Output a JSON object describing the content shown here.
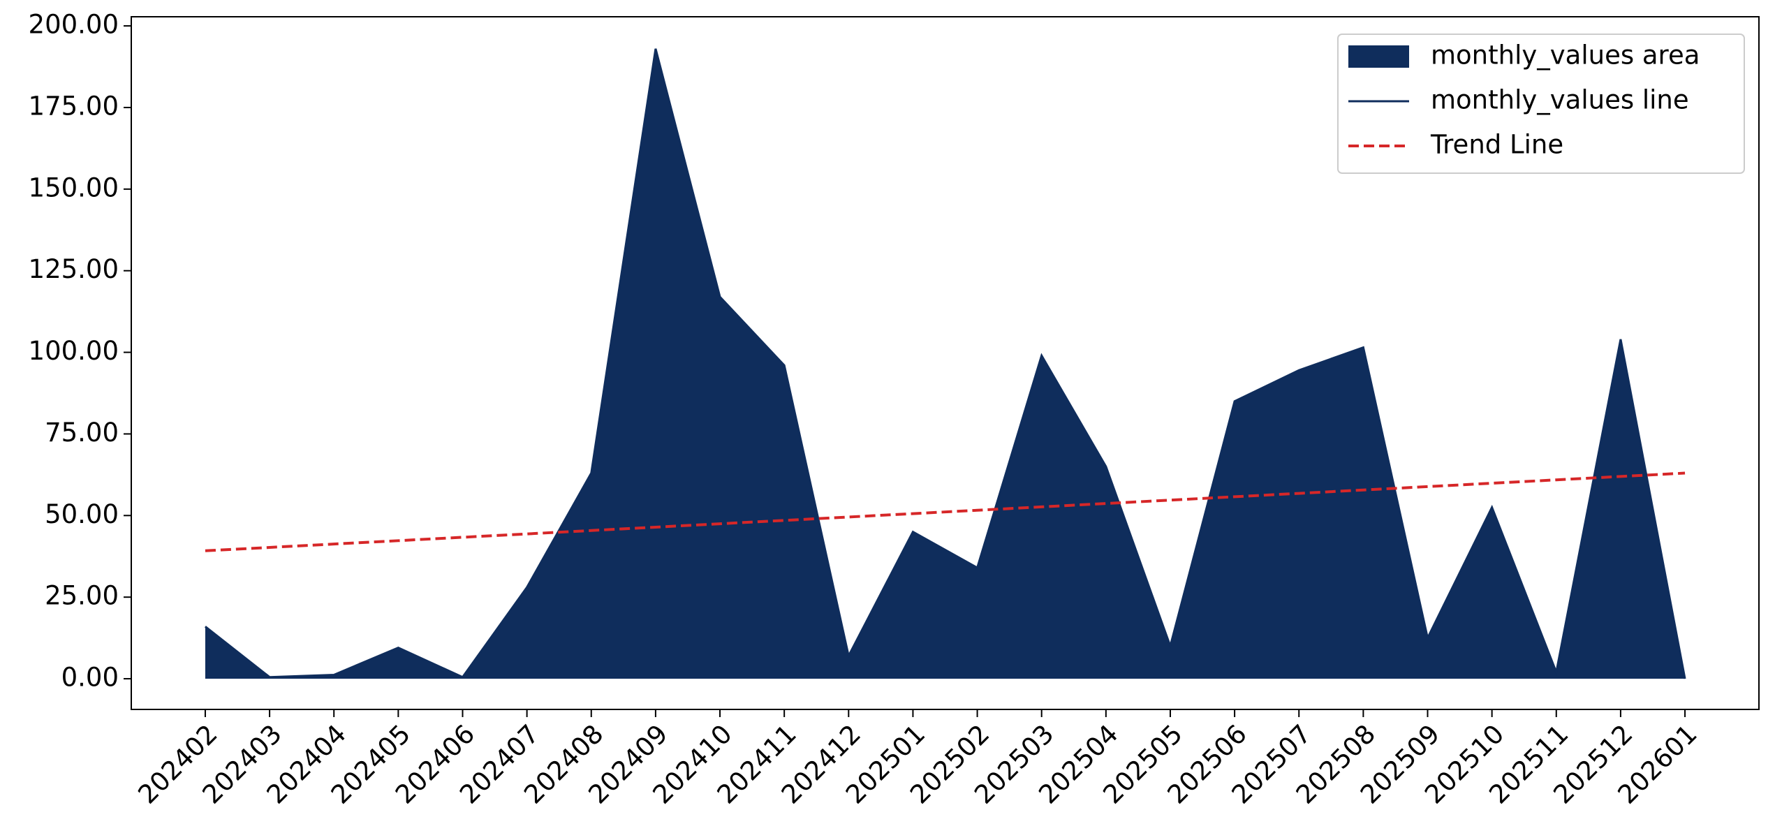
{
  "chart_data": {
    "type": "area",
    "categories": [
      "202402",
      "202403",
      "202404",
      "202405",
      "202406",
      "202407",
      "202408",
      "202409",
      "202410",
      "202411",
      "202412",
      "202501",
      "202502",
      "202503",
      "202504",
      "202505",
      "202506",
      "202507",
      "202508",
      "202509",
      "202510",
      "202511",
      "202512",
      "202601"
    ],
    "series": [
      {
        "name": "monthly_values area",
        "kind": "area",
        "color": "#0f2d5c",
        "values": [
          16,
          0.5,
          1.2,
          9.5,
          0.5,
          28,
          63,
          193,
          117,
          96,
          7,
          45,
          34,
          99,
          65,
          10,
          85,
          94.5,
          101.5,
          12.5,
          52.5,
          2,
          104,
          0
        ]
      },
      {
        "name": "monthly_values line",
        "kind": "line",
        "color": "#0f2d5c",
        "values": [
          16,
          0.5,
          1.2,
          9.5,
          0.5,
          28,
          63,
          193,
          117,
          96,
          7,
          45,
          34,
          99,
          65,
          10,
          85,
          94.5,
          101.5,
          12.5,
          52.5,
          2,
          104,
          0
        ]
      },
      {
        "name": "Trend Line",
        "kind": "dashed",
        "color": "#d62728",
        "values": [
          39.2,
          40.23,
          41.27,
          42.3,
          43.34,
          44.37,
          45.41,
          46.44,
          47.48,
          48.51,
          49.55,
          50.58,
          51.62,
          52.65,
          53.69,
          54.72,
          55.76,
          56.79,
          57.83,
          58.86,
          59.9,
          60.93,
          61.97,
          63.0
        ]
      }
    ],
    "ylim": [
      -9.4,
      202.8
    ],
    "yticks": [
      {
        "value": 0,
        "label": "0.00"
      },
      {
        "value": 25,
        "label": "25.00"
      },
      {
        "value": 50,
        "label": "50.00"
      },
      {
        "value": 75,
        "label": "75.00"
      },
      {
        "value": 100,
        "label": "100.00"
      },
      {
        "value": 125,
        "label": "125.00"
      },
      {
        "value": 150,
        "label": "150.00"
      },
      {
        "value": 175,
        "label": "175.00"
      },
      {
        "value": 200,
        "label": "200.00"
      }
    ],
    "legend": "upper right"
  }
}
